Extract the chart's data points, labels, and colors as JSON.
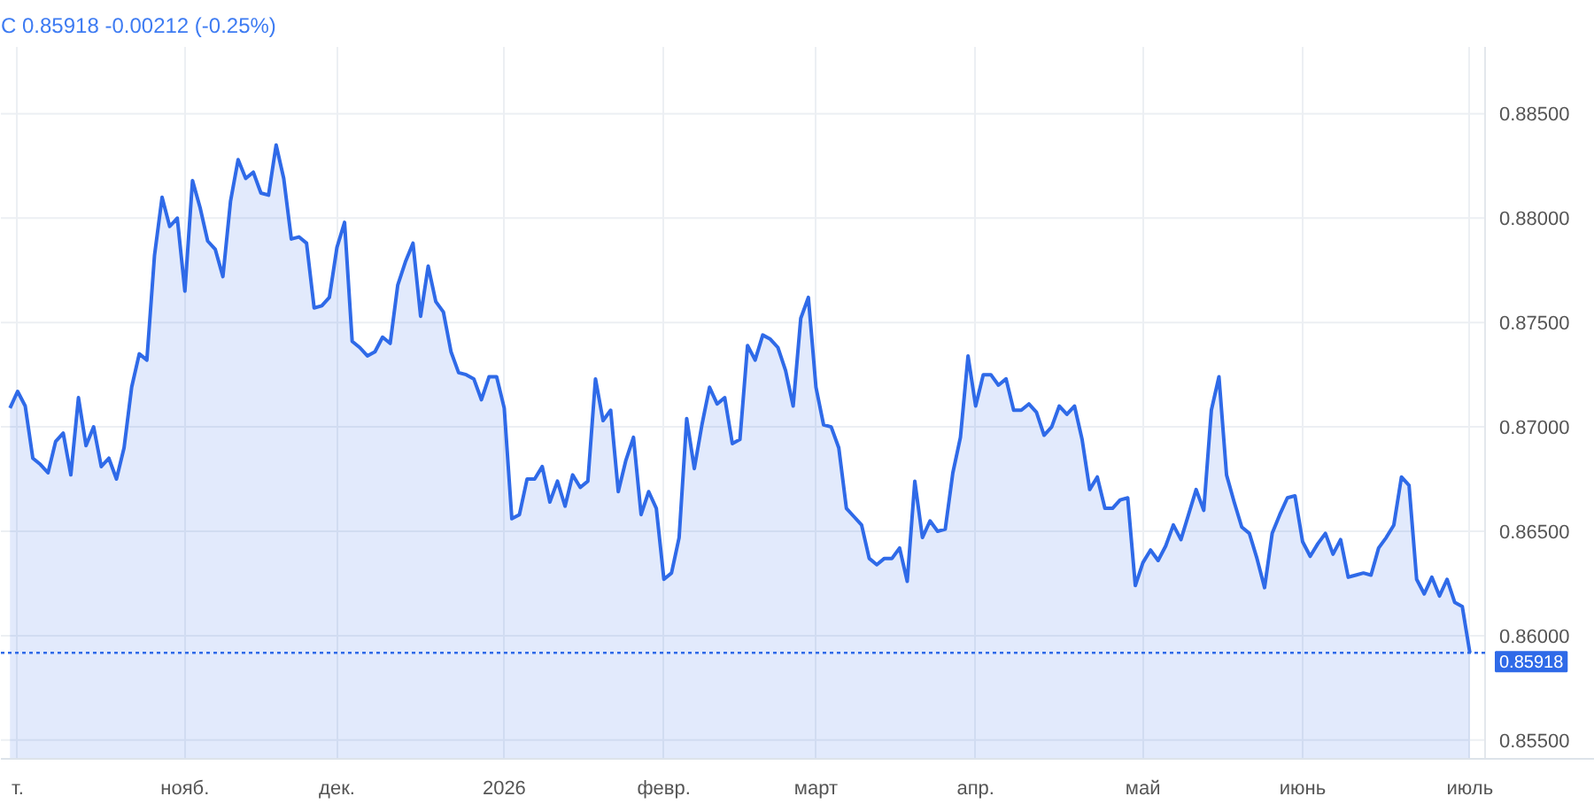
{
  "chart_data": {
    "type": "area",
    "title": "C 0.85918  -0.00212 (-0.25%)",
    "categories": [
      null,
      "т.",
      null,
      null,
      null,
      null,
      null,
      null,
      null,
      null,
      null,
      null,
      null,
      null,
      null,
      null,
      null,
      null,
      null,
      null,
      null,
      null,
      null,
      "нояб.",
      null,
      null,
      null,
      null,
      null,
      null,
      null,
      null,
      null,
      null,
      null,
      null,
      null,
      null,
      null,
      null,
      null,
      null,
      null,
      "дек.",
      null,
      null,
      null,
      null,
      null,
      null,
      null,
      null,
      null,
      null,
      null,
      null,
      null,
      null,
      null,
      null,
      null,
      null,
      null,
      null,
      null,
      "2026",
      null,
      null,
      null,
      null,
      null,
      null,
      null,
      null,
      null,
      null,
      null,
      null,
      null,
      null,
      null,
      null,
      null,
      null,
      null,
      null,
      "февр.",
      null,
      null,
      null,
      null,
      null,
      null,
      null,
      null,
      null,
      null,
      null,
      null,
      null,
      null,
      null,
      null,
      null,
      null,
      null,
      "март",
      null,
      null,
      null,
      null,
      null,
      null,
      null,
      null,
      null,
      null,
      null,
      null,
      null,
      null,
      null,
      null,
      null,
      null,
      null,
      null,
      "апр.",
      null,
      null,
      null,
      null,
      null,
      null,
      null,
      null,
      null,
      null,
      null,
      null,
      null,
      null,
      null,
      null,
      null,
      null,
      null,
      null,
      null,
      "май",
      null,
      null,
      null,
      null,
      null,
      null,
      null,
      null,
      null,
      null,
      null,
      null,
      null,
      null,
      null,
      null,
      null,
      null,
      null,
      null,
      "июнь",
      null,
      null,
      null,
      null,
      null,
      null,
      null,
      null,
      null,
      null,
      null,
      null,
      null,
      null,
      null,
      null,
      null,
      null,
      null,
      null,
      null,
      "июль"
    ],
    "series": [
      {
        "color": "#2f6ae8",
        "values": [
          0.8709,
          0.8717,
          0.871,
          0.8685,
          0.8682,
          0.8678,
          0.8693,
          0.8697,
          0.8677,
          0.8714,
          0.8691,
          0.87,
          0.8681,
          0.8685,
          0.8675,
          0.869,
          0.8719,
          0.8735,
          0.8732,
          0.8782,
          0.881,
          0.8796,
          0.88,
          0.8765,
          0.8818,
          0.8805,
          0.8789,
          0.8785,
          0.8772,
          0.8808,
          0.8828,
          0.8819,
          0.8822,
          0.8812,
          0.8811,
          0.8835,
          0.8819,
          0.879,
          0.8791,
          0.8788,
          0.8757,
          0.8758,
          0.8762,
          0.8786,
          0.8798,
          0.8741,
          0.8738,
          0.8734,
          0.8736,
          0.8743,
          0.874,
          0.8768,
          0.8779,
          0.8788,
          0.8753,
          0.8777,
          0.876,
          0.8755,
          0.8736,
          0.8726,
          0.8725,
          0.8723,
          0.8713,
          0.8724,
          0.8724,
          0.8709,
          0.8656,
          0.8658,
          0.8675,
          0.8675,
          0.8681,
          0.8664,
          0.8674,
          0.8662,
          0.8677,
          0.8671,
          0.8674,
          0.8723,
          0.8703,
          0.8708,
          0.8669,
          0.8684,
          0.8695,
          0.8658,
          0.8669,
          0.8661,
          0.8627,
          0.863,
          0.8647,
          0.8704,
          0.868,
          0.8701,
          0.8719,
          0.8711,
          0.8714,
          0.8692,
          0.8694,
          0.8739,
          0.8732,
          0.8744,
          0.8742,
          0.8738,
          0.8727,
          0.871,
          0.8752,
          0.8762,
          0.8719,
          0.8701,
          0.87,
          0.869,
          0.8661,
          0.8657,
          0.8653,
          0.8637,
          0.8634,
          0.8637,
          0.8637,
          0.8642,
          0.8626,
          0.8674,
          0.8647,
          0.8655,
          0.865,
          0.8651,
          0.8678,
          0.8695,
          0.8734,
          0.871,
          0.8725,
          0.8725,
          0.872,
          0.8723,
          0.8708,
          0.8708,
          0.8711,
          0.8707,
          0.8696,
          0.87,
          0.871,
          0.8706,
          0.871,
          0.8694,
          0.867,
          0.8676,
          0.8661,
          0.8661,
          0.8665,
          0.8666,
          0.8624,
          0.8635,
          0.8641,
          0.8636,
          0.8643,
          0.8653,
          0.8646,
          0.8658,
          0.867,
          0.866,
          0.8708,
          0.8724,
          0.8677,
          0.8664,
          0.8652,
          0.8649,
          0.8637,
          0.8623,
          0.8649,
          0.8658,
          0.8666,
          0.8667,
          0.8645,
          0.8638,
          0.8644,
          0.8649,
          0.8639,
          0.8646,
          0.8628,
          0.8629,
          0.863,
          0.8629,
          0.8642,
          0.8647,
          0.8653,
          0.8676,
          0.8672,
          0.8627,
          0.862,
          0.8628,
          0.8619,
          0.8627,
          0.8616,
          0.8614,
          0.85918
        ]
      }
    ],
    "ylim": [
      0.8541,
      0.8882
    ],
    "yticks": [
      {
        "value": 0.855,
        "label": "0.85500"
      },
      {
        "value": 0.86,
        "label": "0.86000"
      },
      {
        "value": 0.865,
        "label": "0.86500"
      },
      {
        "value": 0.87,
        "label": "0.87000"
      },
      {
        "value": 0.875,
        "label": "0.87500"
      },
      {
        "value": 0.88,
        "label": "0.88000"
      },
      {
        "value": 0.885,
        "label": "0.88500"
      }
    ],
    "ref_lines": [
      {
        "axis": "y",
        "value": 0.85918,
        "label": "0.85918",
        "color": "#2f6ae8",
        "line_style": "dotted"
      }
    ],
    "grid": true
  }
}
